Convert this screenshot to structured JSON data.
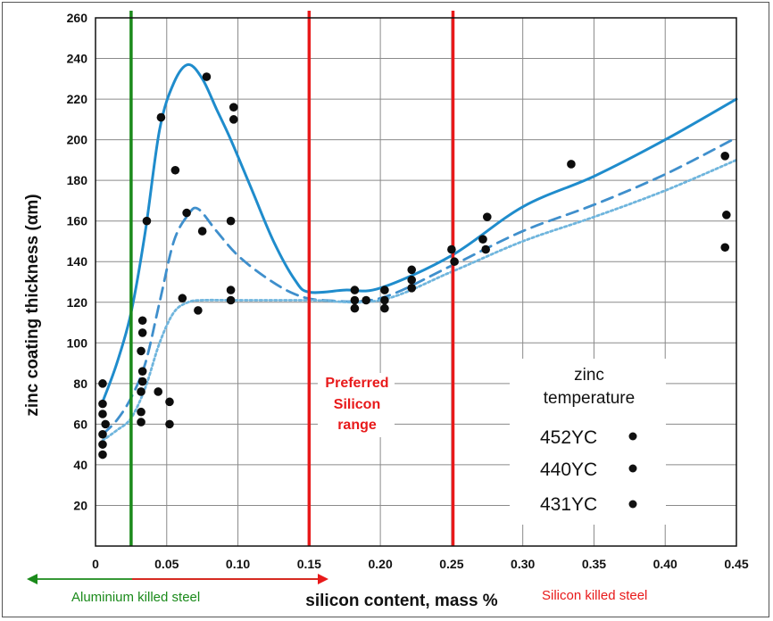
{
  "chart_data": {
    "type": "scatter",
    "xlabel": "silicon content, mass %",
    "ylabel": "zinc coating thickness (αm)",
    "xlim": [
      0,
      0.45
    ],
    "ylim": [
      0,
      260
    ],
    "x_ticks": [
      0,
      0.05,
      0.1,
      0.15,
      0.2,
      0.25,
      0.3,
      0.35,
      0.4,
      0.45
    ],
    "x_tick_labels": [
      "0",
      "0.05",
      "0.10",
      "0.15",
      "0.20",
      "0.25",
      "0.30",
      "0.35",
      "0.40",
      "0.45"
    ],
    "y_ticks": [
      20,
      40,
      60,
      80,
      100,
      120,
      140,
      160,
      180,
      200,
      220,
      240,
      260
    ],
    "y_tick_labels": [
      "20",
      "40",
      "60",
      "80",
      "100",
      "120",
      "140",
      "160",
      "180",
      "200",
      "220",
      "240",
      "260"
    ],
    "grid": true,
    "points": [
      {
        "x": 0.005,
        "y": 80
      },
      {
        "x": 0.005,
        "y": 70
      },
      {
        "x": 0.005,
        "y": 65
      },
      {
        "x": 0.007,
        "y": 60
      },
      {
        "x": 0.005,
        "y": 55
      },
      {
        "x": 0.005,
        "y": 50
      },
      {
        "x": 0.005,
        "y": 45
      },
      {
        "x": 0.033,
        "y": 111
      },
      {
        "x": 0.033,
        "y": 105
      },
      {
        "x": 0.032,
        "y": 96
      },
      {
        "x": 0.033,
        "y": 86
      },
      {
        "x": 0.033,
        "y": 81
      },
      {
        "x": 0.032,
        "y": 76
      },
      {
        "x": 0.032,
        "y": 66
      },
      {
        "x": 0.032,
        "y": 61
      },
      {
        "x": 0.036,
        "y": 160
      },
      {
        "x": 0.044,
        "y": 76
      },
      {
        "x": 0.046,
        "y": 211
      },
      {
        "x": 0.052,
        "y": 71
      },
      {
        "x": 0.052,
        "y": 60
      },
      {
        "x": 0.056,
        "y": 185
      },
      {
        "x": 0.061,
        "y": 122
      },
      {
        "x": 0.064,
        "y": 164
      },
      {
        "x": 0.072,
        "y": 116
      },
      {
        "x": 0.075,
        "y": 155
      },
      {
        "x": 0.078,
        "y": 231
      },
      {
        "x": 0.095,
        "y": 160
      },
      {
        "x": 0.095,
        "y": 126
      },
      {
        "x": 0.095,
        "y": 121
      },
      {
        "x": 0.097,
        "y": 216
      },
      {
        "x": 0.097,
        "y": 210
      },
      {
        "x": 0.182,
        "y": 126
      },
      {
        "x": 0.182,
        "y": 121
      },
      {
        "x": 0.182,
        "y": 117
      },
      {
        "x": 0.19,
        "y": 121
      },
      {
        "x": 0.203,
        "y": 126
      },
      {
        "x": 0.203,
        "y": 121
      },
      {
        "x": 0.203,
        "y": 117
      },
      {
        "x": 0.222,
        "y": 136
      },
      {
        "x": 0.222,
        "y": 131
      },
      {
        "x": 0.222,
        "y": 127
      },
      {
        "x": 0.25,
        "y": 146
      },
      {
        "x": 0.252,
        "y": 140
      },
      {
        "x": 0.272,
        "y": 151
      },
      {
        "x": 0.275,
        "y": 162
      },
      {
        "x": 0.274,
        "y": 146
      },
      {
        "x": 0.334,
        "y": 188
      },
      {
        "x": 0.442,
        "y": 192
      },
      {
        "x": 0.443,
        "y": 163
      },
      {
        "x": 0.442,
        "y": 147
      }
    ],
    "series": [
      {
        "style": "solid",
        "color": "#1f8ccc",
        "points": [
          [
            0.005,
            71
          ],
          [
            0.015,
            90
          ],
          [
            0.025,
            115
          ],
          [
            0.035,
            155
          ],
          [
            0.045,
            205
          ],
          [
            0.055,
            228
          ],
          [
            0.065,
            237
          ],
          [
            0.075,
            230
          ],
          [
            0.085,
            215
          ],
          [
            0.095,
            200
          ],
          [
            0.11,
            175
          ],
          [
            0.125,
            150
          ],
          [
            0.14,
            131
          ],
          [
            0.15,
            125
          ],
          [
            0.175,
            126
          ],
          [
            0.2,
            127
          ],
          [
            0.25,
            143
          ],
          [
            0.3,
            167
          ],
          [
            0.35,
            182
          ],
          [
            0.4,
            200
          ],
          [
            0.45,
            220
          ]
        ]
      },
      {
        "style": "dashed",
        "color": "#3f8fcc",
        "points": [
          [
            0.005,
            55
          ],
          [
            0.015,
            62
          ],
          [
            0.025,
            73
          ],
          [
            0.035,
            90
          ],
          [
            0.045,
            120
          ],
          [
            0.055,
            150
          ],
          [
            0.065,
            163
          ],
          [
            0.072,
            166
          ],
          [
            0.085,
            155
          ],
          [
            0.1,
            143
          ],
          [
            0.12,
            132
          ],
          [
            0.14,
            124
          ],
          [
            0.16,
            121
          ],
          [
            0.2,
            122
          ],
          [
            0.25,
            138
          ],
          [
            0.3,
            155
          ],
          [
            0.35,
            168
          ],
          [
            0.4,
            183
          ],
          [
            0.45,
            201
          ]
        ]
      },
      {
        "style": "dotted",
        "color": "#6fb5dd",
        "points": [
          [
            0.005,
            52
          ],
          [
            0.015,
            57
          ],
          [
            0.025,
            63
          ],
          [
            0.035,
            78
          ],
          [
            0.045,
            100
          ],
          [
            0.055,
            115
          ],
          [
            0.065,
            120
          ],
          [
            0.075,
            121
          ],
          [
            0.1,
            121
          ],
          [
            0.15,
            121
          ],
          [
            0.2,
            121
          ],
          [
            0.25,
            135
          ],
          [
            0.3,
            150
          ],
          [
            0.35,
            162
          ],
          [
            0.4,
            175
          ],
          [
            0.45,
            190
          ]
        ]
      }
    ],
    "vlines": [
      {
        "x": 0.025,
        "color": "#1a8a1a"
      },
      {
        "x": 0.15,
        "color": "#e8191a"
      },
      {
        "x": 0.251,
        "color": "#e8191a"
      }
    ],
    "annotation": [
      "Preferred",
      "Silicon",
      "range"
    ],
    "regions": [
      {
        "label": "Aluminium killed steel",
        "color": "#1a8a1a"
      },
      {
        "label": "Silicon killed steel",
        "color": "#e8191a"
      }
    ],
    "legend": {
      "title_lines": [
        "zinc",
        "temperature"
      ],
      "placement": "bottom-right",
      "items": [
        "452ΥC",
        "440ΥC",
        "431ΥC"
      ]
    }
  }
}
